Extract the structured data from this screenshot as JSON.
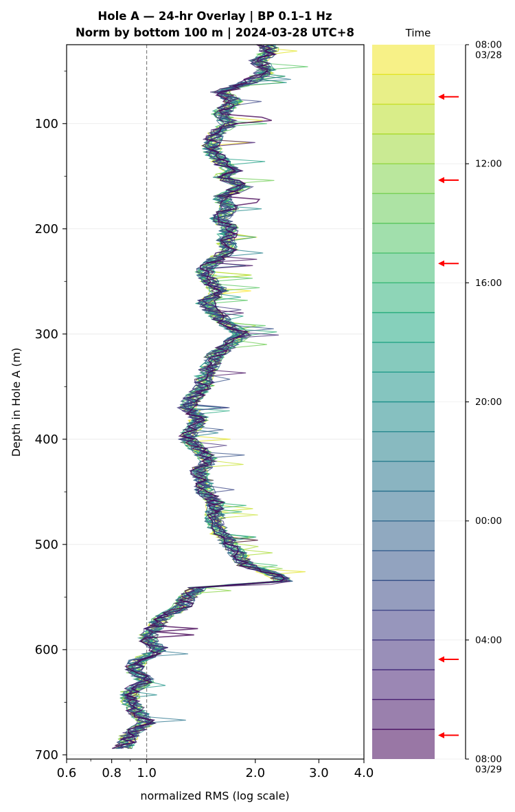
{
  "chart_data": {
    "type": "line",
    "title_line1": "Hole A — 24-hr Overlay  |  BP 0.1–1 Hz",
    "title_line2": "Norm by bottom 100 m  |  2024-03-28 UTC+8",
    "xlabel": "normalized RMS  (log scale)",
    "ylabel": "Depth in Hole A (m)",
    "xscale": "log",
    "xlim": [
      0.6,
      4.0
    ],
    "ylim": [
      704,
      25
    ],
    "y_inverted": true,
    "x_major_ticks": [
      0.6,
      0.8,
      1.0,
      2.0,
      3.0,
      4.0
    ],
    "x_tick_labels": [
      "0.6",
      "0.8",
      "1.0",
      "2.0",
      "3.0",
      "4.0"
    ],
    "x_minor_ticks": [
      0.7,
      0.9
    ],
    "y_major_ticks": [
      100,
      200,
      300,
      400,
      500,
      600,
      700
    ],
    "y_tick_labels": [
      "100",
      "200",
      "300",
      "400",
      "500",
      "600",
      "700"
    ],
    "y_minor_ticks": [
      50,
      150,
      250,
      350,
      450,
      550,
      650
    ],
    "grid": "horizontal at major y ticks",
    "reference_line": {
      "x": 1.0,
      "style": "dashed"
    },
    "colormap": "viridis",
    "series_count": 24,
    "mean_profile": {
      "depth": [
        25,
        30,
        40,
        50,
        60,
        70,
        75,
        80,
        90,
        100,
        110,
        120,
        130,
        140,
        145,
        150,
        160,
        170,
        180,
        190,
        200,
        210,
        220,
        230,
        240,
        250,
        260,
        270,
        280,
        290,
        300,
        310,
        320,
        330,
        340,
        350,
        360,
        370,
        380,
        390,
        400,
        410,
        420,
        430,
        440,
        450,
        460,
        470,
        480,
        490,
        500,
        510,
        520,
        530,
        535,
        540,
        550,
        560,
        570,
        580,
        590,
        600,
        610,
        620,
        630,
        640,
        650,
        660,
        670,
        680,
        690,
        695
      ],
      "rms": [
        2.15,
        2.2,
        2.05,
        2.15,
        1.95,
        1.6,
        1.7,
        1.75,
        1.6,
        1.7,
        1.55,
        1.5,
        1.55,
        1.65,
        1.75,
        1.6,
        1.85,
        1.6,
        1.7,
        1.6,
        1.7,
        1.65,
        1.7,
        1.55,
        1.45,
        1.5,
        1.6,
        1.45,
        1.55,
        1.65,
        1.85,
        1.7,
        1.55,
        1.5,
        1.45,
        1.45,
        1.35,
        1.3,
        1.4,
        1.35,
        1.3,
        1.4,
        1.5,
        1.4,
        1.45,
        1.45,
        1.55,
        1.55,
        1.55,
        1.6,
        1.7,
        1.8,
        1.9,
        2.3,
        2.4,
        1.4,
        1.3,
        1.25,
        1.1,
        1.05,
        1.0,
        1.1,
        0.95,
        0.92,
        1.0,
        0.9,
        0.9,
        0.95,
        1.0,
        0.9,
        0.88,
        0.85
      ]
    },
    "colorbar": {
      "title": "Time",
      "tick_labels": [
        "08:00\n03/28",
        "12:00",
        "16:00",
        "20:00",
        "00:00",
        "04:00",
        "08:00\n03/29"
      ],
      "tick_hours": [
        0,
        4,
        8,
        12,
        16,
        20,
        24
      ],
      "bins": 24,
      "markers_hour": [
        1.75,
        4.55,
        7.35,
        20.65,
        23.2
      ],
      "marker_color": "#ff0000"
    }
  }
}
